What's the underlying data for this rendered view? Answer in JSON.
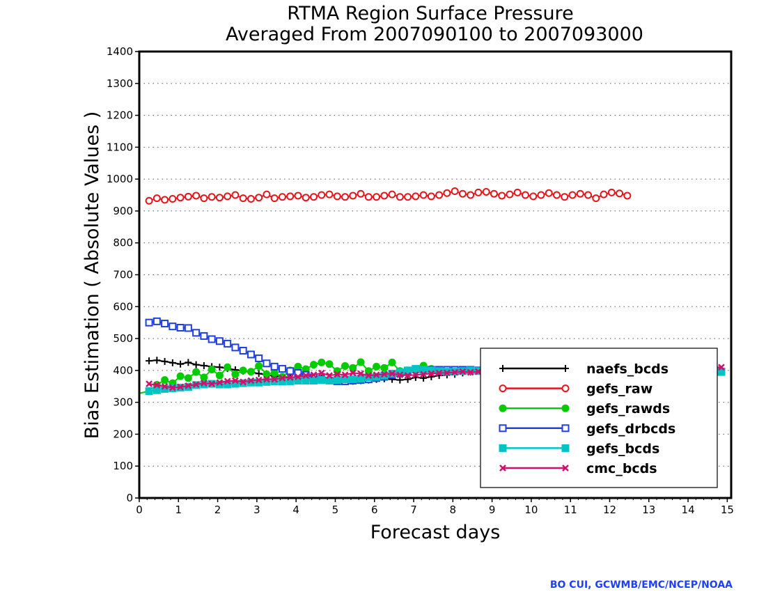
{
  "credit": "BO CUI, GCWMB/EMC/NCEP/NOAA",
  "chart_data": {
    "type": "line",
    "title": "RTMA Region Surface Pressure",
    "subtitle": "Averaged From 2007090100 to 2007093000",
    "xlabel": "Forecast days",
    "ylabel": "Bias Estimation ( Absolute Values )",
    "xlim": [
      0,
      15.1
    ],
    "ylim": [
      0,
      1400
    ],
    "xticks": [
      "0",
      "1",
      "2",
      "3",
      "4",
      "5",
      "6",
      "7",
      "8",
      "9",
      "10",
      "11",
      "12",
      "13",
      "14",
      "15"
    ],
    "yticks": [
      "0",
      "100",
      "200",
      "300",
      "400",
      "500",
      "600",
      "700",
      "800",
      "900",
      "1000",
      "1100",
      "1200",
      "1300",
      "1400"
    ],
    "grid": "horizontal dotted",
    "legend_position": "lower-right",
    "x_start": 0.25,
    "x_step": 0.2,
    "series": [
      {
        "name": "naefs_bcds",
        "color": "#000000",
        "marker": "plus",
        "values": [
          430,
          432,
          428,
          424,
          420,
          425,
          418,
          415,
          412,
          410,
          406,
          402,
          398,
          395,
          390,
          386,
          382,
          380,
          378,
          376,
          375,
          374,
          376,
          378,
          372,
          368,
          366,
          368,
          370,
          372,
          374,
          372,
          370,
          372,
          378,
          376,
          380,
          384,
          386,
          388,
          392,
          395,
          398,
          400,
          400,
          402,
          404,
          400,
          398,
          396,
          396,
          398,
          394,
          392,
          390,
          388,
          392,
          396,
          400,
          402,
          400,
          398,
          396,
          398,
          400,
          402,
          398,
          396,
          400,
          400,
          398,
          396,
          395,
          398
        ]
      },
      {
        "name": "gefs_raw",
        "color": "#e8141a",
        "marker": "circle-open",
        "values": [
          932,
          940,
          935,
          938,
          942,
          945,
          948,
          940,
          944,
          942,
          946,
          950,
          940,
          938,
          942,
          952,
          940,
          944,
          946,
          948,
          942,
          944,
          950,
          952,
          946,
          944,
          948,
          954,
          944,
          944,
          948,
          952,
          944,
          944,
          946,
          950,
          946,
          950,
          956,
          962,
          954,
          950,
          958,
          960,
          954,
          948,
          952,
          958,
          950,
          946,
          950,
          956,
          950,
          944,
          950,
          954,
          950,
          940,
          952,
          958,
          955,
          948
        ]
      },
      {
        "name": "gefs_rawds",
        "color": "#00cc00",
        "marker": "circle-filled",
        "values": [
          335,
          355,
          370,
          360,
          382,
          376,
          395,
          378,
          403,
          384,
          410,
          388,
          400,
          396,
          414,
          388,
          392,
          380,
          400,
          412,
          404,
          418,
          425,
          420,
          398,
          414,
          408,
          426,
          398,
          412,
          408,
          425,
          398,
          400,
          400,
          415,
          405,
          402,
          400,
          398,
          400,
          398,
          400,
          402,
          405,
          400,
          398,
          396,
          400,
          402,
          398,
          396,
          398,
          400,
          402,
          398,
          396,
          400,
          398,
          396,
          400,
          398,
          396,
          398,
          400,
          402,
          398,
          396,
          400,
          400,
          398,
          396,
          395,
          398
        ]
      },
      {
        "name": "gefs_drbcds",
        "color": "#1f3fe0",
        "marker": "square-open",
        "values": [
          550,
          554,
          547,
          538,
          534,
          533,
          518,
          508,
          498,
          492,
          484,
          472,
          462,
          450,
          438,
          422,
          412,
          405,
          398,
          392,
          386,
          378,
          372,
          368,
          366,
          366,
          368,
          370,
          372,
          376,
          380,
          386,
          392,
          398,
          404,
          402,
          402,
          402,
          402,
          402,
          402,
          402,
          400,
          400,
          400,
          398,
          398,
          398,
          396,
          396,
          396,
          396,
          396,
          396,
          396,
          396,
          396,
          396,
          396,
          396,
          396,
          396,
          396,
          396,
          396,
          396,
          396,
          396,
          396,
          396,
          396,
          396,
          396,
          396
        ]
      },
      {
        "name": "gefs_bcds",
        "color": "#00c4c4",
        "marker": "square-filled",
        "values": [
          335,
          338,
          342,
          344,
          346,
          348,
          354,
          356,
          358,
          356,
          356,
          358,
          360,
          362,
          362,
          364,
          366,
          365,
          366,
          368,
          368,
          368,
          370,
          368,
          370,
          372,
          372,
          374,
          378,
          380,
          384,
          390,
          395,
          400,
          405,
          402,
          400,
          398,
          396,
          396,
          398,
          400,
          398,
          396,
          396,
          398,
          400,
          398,
          396,
          394,
          396,
          398,
          396,
          394,
          396,
          398,
          396,
          394,
          396,
          398,
          396,
          394,
          396,
          398,
          396,
          394,
          396,
          398,
          396,
          394,
          392,
          390,
          392,
          395
        ]
      },
      {
        "name": "cmc_bcds",
        "color": "#d0106c",
        "marker": "x",
        "values": [
          358,
          354,
          350,
          346,
          348,
          352,
          356,
          360,
          358,
          362,
          366,
          368,
          364,
          368,
          370,
          372,
          372,
          376,
          378,
          380,
          384,
          386,
          392,
          384,
          388,
          386,
          392,
          390,
          384,
          386,
          388,
          390,
          386,
          384,
          386,
          388,
          390,
          392,
          392,
          394,
          396,
          394,
          396,
          398,
          398,
          400,
          398,
          396,
          398,
          400,
          402,
          398,
          396,
          400,
          402,
          398,
          396,
          400,
          402,
          398,
          396,
          400,
          402,
          404,
          406,
          404,
          402,
          404,
          406,
          404,
          406,
          408,
          410,
          410
        ]
      }
    ]
  }
}
